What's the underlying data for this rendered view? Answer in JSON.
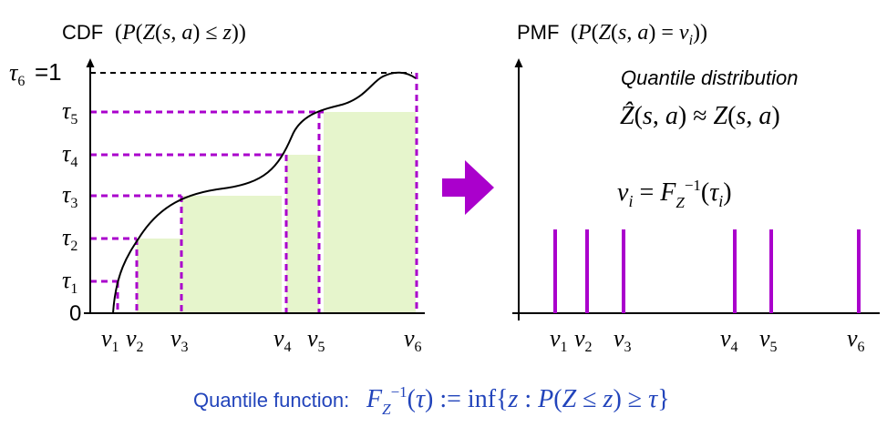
{
  "left_panel": {
    "title_prefix": "CDF",
    "title_math": "(P(Z(s, a) ≤ z))",
    "y_zero": "0",
    "tau_labels": [
      "τ1",
      "τ2",
      "τ3",
      "τ4",
      "τ5",
      "τ6"
    ],
    "tau_top_suffix": "=1",
    "v_labels": [
      "v1",
      "v2",
      "v3",
      "v4",
      "v5",
      "v6"
    ]
  },
  "right_panel": {
    "title_prefix": "PMF",
    "title_math": "(P(Z(s, a) = vi))",
    "distribution_label": "Quantile distribution",
    "approx_equation": "Ẑ(s, a) ≈ Z(s, a)",
    "vi_equation": "vi = FZ−1(τi)",
    "v_labels": [
      "v1",
      "v2",
      "v3",
      "v4",
      "v5",
      "v6"
    ]
  },
  "footer": {
    "prefix": "Quantile function:",
    "formula": "FZ−1(τ) := inf{z : P(Z ≤ z) ≥ τ}"
  },
  "colors": {
    "accent": "#aa00cc",
    "fill": "#e6f5cc",
    "footer_text": "#2244bb",
    "axis": "#000000"
  },
  "chart_data": [
    {
      "type": "step-cdf",
      "quantile_levels": [
        0.167,
        0.333,
        0.5,
        0.667,
        0.833,
        1.0
      ],
      "quantile_values_labels": [
        "v1",
        "v2",
        "v3",
        "v4",
        "v5",
        "v6"
      ]
    },
    {
      "type": "pmf-spikes",
      "positions_labels": [
        "v1",
        "v2",
        "v3",
        "v4",
        "v5",
        "v6"
      ],
      "equal_heights": true
    }
  ]
}
